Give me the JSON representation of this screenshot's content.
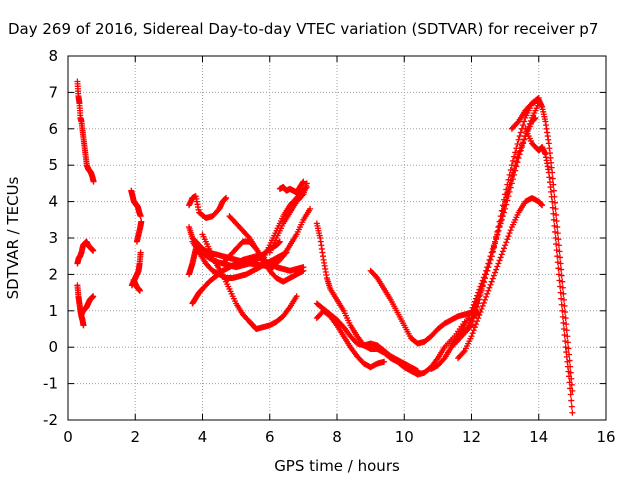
{
  "chart_data": {
    "type": "scatter",
    "title": "Day 269 of 2016, Sidereal Day-to-day VTEC variation (SDTVAR) for receiver p7",
    "xlabel": "GPS time / hours",
    "ylabel": "SDTVAR / TECUs",
    "xlim": [
      0,
      16
    ],
    "ylim": [
      -2,
      8
    ],
    "xticks": [
      "0",
      "2",
      "4",
      "6",
      "8",
      "10",
      "12",
      "14",
      "16"
    ],
    "yticks": [
      "-2",
      "-1",
      "0",
      "1",
      "2",
      "3",
      "4",
      "5",
      "6",
      "7",
      "8"
    ],
    "grid": true,
    "marker": "+",
    "color": "#ff0000",
    "series": [
      {
        "x": [
          0.28,
          0.31,
          0.34,
          0.37,
          0.4,
          0.44,
          0.48,
          0.52,
          0.56,
          0.6,
          0.64,
          0.68,
          0.72,
          0.76
        ],
        "y": [
          7.3,
          6.9,
          6.7,
          6.3,
          6.2,
          5.9,
          5.6,
          5.3,
          5.0,
          4.9,
          4.85,
          4.8,
          4.7,
          4.55
        ]
      },
      {
        "x": [
          0.28,
          0.32,
          0.36,
          0.4,
          0.45,
          0.5,
          0.55,
          0.6,
          0.65,
          0.7,
          0.75
        ],
        "y": [
          2.3,
          2.45,
          2.5,
          2.6,
          2.8,
          2.85,
          2.9,
          2.8,
          2.75,
          2.7,
          2.65
        ]
      },
      {
        "x": [
          0.28,
          0.31,
          0.34,
          0.37,
          0.4,
          0.43,
          0.46
        ],
        "y": [
          1.7,
          1.4,
          1.2,
          1.0,
          0.85,
          0.75,
          0.6
        ]
      },
      {
        "x": [
          0.4,
          0.45,
          0.5,
          0.55,
          0.6,
          0.65,
          0.7,
          0.75
        ],
        "y": [
          0.9,
          1.0,
          1.05,
          1.1,
          1.2,
          1.3,
          1.35,
          1.4
        ]
      },
      {
        "x": [
          1.88,
          1.92,
          1.96,
          2.0,
          2.04,
          2.08,
          2.12,
          2.16
        ],
        "y": [
          4.3,
          4.15,
          4.0,
          3.95,
          3.9,
          3.85,
          3.7,
          3.6
        ]
      },
      {
        "x": [
          1.9,
          1.95,
          2.0,
          2.05,
          2.1,
          2.13,
          2.16
        ],
        "y": [
          1.7,
          1.8,
          1.9,
          2.0,
          2.1,
          2.3,
          2.6
        ]
      },
      {
        "x": [
          1.95,
          2.0,
          2.05,
          2.1,
          2.14
        ],
        "y": [
          1.85,
          1.75,
          1.65,
          1.6,
          1.55
        ]
      },
      {
        "x": [
          2.05,
          2.1,
          2.15,
          2.18
        ],
        "y": [
          2.9,
          3.1,
          3.3,
          3.45
        ]
      },
      {
        "x": [
          3.6,
          3.7,
          3.8,
          3.9,
          4.1,
          4.3,
          4.5,
          4.6,
          4.7
        ],
        "y": [
          3.9,
          4.1,
          4.15,
          3.7,
          3.55,
          3.6,
          3.8,
          4.0,
          4.1
        ]
      },
      {
        "x": [
          3.6,
          3.65,
          3.7,
          3.75,
          3.8
        ],
        "y": [
          2.0,
          2.15,
          2.3,
          2.5,
          2.7
        ]
      },
      {
        "x": [
          3.6,
          3.7,
          3.8,
          3.9,
          4.0,
          4.2,
          4.4,
          4.6,
          4.8,
          5.0,
          5.2,
          5.4,
          5.6,
          5.8,
          6.0,
          6.1
        ],
        "y": [
          3.3,
          3.0,
          2.9,
          2.8,
          2.7,
          2.6,
          2.55,
          2.5,
          2.45,
          2.4,
          2.35,
          2.3,
          2.28,
          2.25,
          2.2,
          2.2
        ]
      },
      {
        "x": [
          3.7,
          3.8,
          3.9,
          4.0,
          4.2,
          4.4,
          4.6,
          4.8,
          5.0,
          5.2,
          5.4,
          5.6,
          5.8,
          6.0,
          6.2,
          6.4,
          6.6,
          6.8,
          7.0
        ],
        "y": [
          1.2,
          1.35,
          1.5,
          1.6,
          1.8,
          1.95,
          2.1,
          2.2,
          2.3,
          2.4,
          2.45,
          2.5,
          2.4,
          2.3,
          2.2,
          2.15,
          2.1,
          2.15,
          2.2
        ]
      },
      {
        "x": [
          3.7,
          3.9,
          4.1,
          4.3,
          4.5,
          4.7,
          4.9,
          5.1,
          5.3,
          5.5,
          5.7,
          5.9,
          6.1,
          6.3,
          6.5
        ],
        "y": [
          2.9,
          2.6,
          2.3,
          2.1,
          2.0,
          1.9,
          1.9,
          1.95,
          2.0,
          2.1,
          2.2,
          2.3,
          2.4,
          2.5,
          2.6
        ]
      },
      {
        "x": [
          3.8,
          4.0,
          4.2,
          4.4,
          4.6,
          4.8,
          5.0,
          5.2,
          5.4,
          5.6,
          5.8,
          6.0,
          6.2,
          6.3
        ],
        "y": [
          2.8,
          2.6,
          2.45,
          2.35,
          2.3,
          2.25,
          2.2,
          2.25,
          2.3,
          2.4,
          2.55,
          2.7,
          2.8,
          2.9
        ]
      },
      {
        "x": [
          4.0,
          4.2,
          4.4,
          4.6,
          4.8,
          5.0,
          5.2,
          5.4,
          5.5,
          5.6,
          5.8,
          6.0,
          6.2,
          6.4,
          6.6,
          6.8
        ],
        "y": [
          3.1,
          2.7,
          2.3,
          2.0,
          1.6,
          1.2,
          0.9,
          0.7,
          0.6,
          0.5,
          0.55,
          0.6,
          0.7,
          0.85,
          1.1,
          1.4
        ]
      },
      {
        "x": [
          4.6,
          4.8,
          5.0,
          5.2,
          5.4,
          5.6,
          5.8,
          6.0,
          6.2,
          6.4,
          6.6,
          6.8,
          7.0,
          7.2
        ],
        "y": [
          2.3,
          2.5,
          2.7,
          2.9,
          2.9,
          2.7,
          2.4,
          2.2,
          2.3,
          2.5,
          2.8,
          3.1,
          3.5,
          3.8
        ]
      },
      {
        "x": [
          4.8,
          5.0,
          5.2,
          5.4,
          5.6,
          5.8,
          6.0,
          6.2,
          6.4,
          6.6,
          6.8,
          7.0
        ],
        "y": [
          3.6,
          3.4,
          3.2,
          3.0,
          2.7,
          2.4,
          2.1,
          1.9,
          1.8,
          1.9,
          2.0,
          2.1
        ]
      },
      {
        "x": [
          5.8,
          6.0,
          6.2,
          6.4,
          6.6,
          6.8,
          7.0,
          7.1
        ],
        "y": [
          2.4,
          2.8,
          3.2,
          3.6,
          3.9,
          4.1,
          4.3,
          4.4
        ]
      },
      {
        "x": [
          6.0,
          6.2,
          6.4,
          6.6,
          6.8,
          7.0,
          7.1
        ],
        "y": [
          2.6,
          3.0,
          3.4,
          3.7,
          4.0,
          4.2,
          4.5
        ]
      },
      {
        "x": [
          6.3,
          6.4,
          6.5,
          6.6,
          6.7,
          6.8,
          6.9,
          7.0
        ],
        "y": [
          4.35,
          4.4,
          4.3,
          4.35,
          4.3,
          4.25,
          4.4,
          4.55
        ]
      },
      {
        "x": [
          7.4,
          7.5,
          7.6,
          7.7,
          7.8,
          8.0,
          8.2,
          8.4,
          8.6,
          8.8,
          9.0,
          9.2,
          9.4,
          9.6,
          9.8,
          10.0,
          10.2,
          10.4,
          10.6,
          10.8,
          11.0,
          11.2,
          11.5,
          11.8,
          12.2
        ],
        "y": [
          3.4,
          3.0,
          2.4,
          1.9,
          1.6,
          1.3,
          1.0,
          0.6,
          0.3,
          0.05,
          -0.05,
          -0.05,
          -0.15,
          -0.3,
          -0.4,
          -0.55,
          -0.65,
          -0.75,
          -0.7,
          -0.55,
          -0.3,
          0.0,
          0.3,
          0.7,
          0.9
        ]
      },
      {
        "x": [
          7.4,
          7.6,
          7.8,
          8.0,
          8.2,
          8.4,
          8.6,
          8.8,
          9.0,
          9.2,
          9.4,
          9.6,
          9.8,
          10.0,
          10.2,
          10.4
        ],
        "y": [
          1.2,
          1.05,
          0.9,
          0.75,
          0.55,
          0.3,
          0.1,
          0.05,
          0.1,
          0.05,
          -0.1,
          -0.25,
          -0.35,
          -0.45,
          -0.55,
          -0.65
        ]
      },
      {
        "x": [
          7.4,
          7.6,
          7.8,
          8.0,
          8.2,
          8.4,
          8.6,
          8.8,
          9.0,
          9.2,
          9.4
        ],
        "y": [
          0.8,
          1.0,
          0.85,
          0.6,
          0.3,
          0.0,
          -0.25,
          -0.45,
          -0.55,
          -0.45,
          -0.4
        ]
      },
      {
        "x": [
          9.0,
          9.2,
          9.4,
          9.6,
          9.8,
          10.0,
          10.2,
          10.4,
          10.6,
          10.8,
          11.0,
          11.2,
          11.4,
          11.6,
          11.8,
          12.0,
          12.2
        ],
        "y": [
          2.1,
          1.9,
          1.6,
          1.3,
          0.95,
          0.6,
          0.25,
          0.1,
          0.15,
          0.3,
          0.5,
          0.65,
          0.75,
          0.85,
          0.9,
          0.95,
          0.95
        ]
      },
      {
        "x": [
          10.8,
          11.0,
          11.2,
          11.4,
          11.6,
          11.8,
          12.0,
          12.2,
          12.4,
          12.6,
          12.8,
          13.0,
          13.2,
          13.4,
          13.6,
          13.8,
          14.0
        ],
        "y": [
          -0.6,
          -0.5,
          -0.3,
          0.0,
          0.2,
          0.4,
          0.6,
          1.2,
          1.9,
          2.5,
          3.3,
          4.2,
          5.0,
          5.7,
          6.3,
          6.7,
          6.85
        ]
      },
      {
        "x": [
          11.5,
          11.8,
          12.0,
          12.2,
          12.4,
          12.6,
          12.8,
          13.0,
          13.2,
          13.4,
          13.6,
          13.8,
          13.9
        ],
        "y": [
          0.1,
          0.4,
          0.8,
          1.3,
          1.9,
          2.5,
          3.2,
          4.0,
          4.7,
          5.3,
          5.8,
          6.2,
          6.3
        ]
      },
      {
        "x": [
          11.6,
          11.8,
          12.0,
          12.2,
          12.4,
          12.6,
          12.8,
          13.0,
          13.2,
          13.4,
          13.6,
          13.8,
          14.0,
          14.1
        ],
        "y": [
          -0.3,
          -0.1,
          0.3,
          0.8,
          1.3,
          1.8,
          2.3,
          2.8,
          3.3,
          3.7,
          4.0,
          4.1,
          4.0,
          3.9
        ]
      },
      {
        "x": [
          11.4,
          11.6,
          11.8,
          12.0,
          12.2,
          12.4,
          12.6,
          12.8,
          13.0,
          13.2,
          13.4,
          13.6,
          13.8,
          14.0
        ],
        "y": [
          0.0,
          0.3,
          0.6,
          1.0,
          1.5,
          2.0,
          2.6,
          3.2,
          3.8,
          4.5,
          5.2,
          5.8,
          6.3,
          6.7
        ]
      },
      {
        "x": [
          13.2,
          13.4,
          13.6,
          13.8,
          14.0,
          14.1,
          14.2,
          14.3,
          14.4,
          14.5,
          14.6,
          14.7,
          14.8,
          14.9,
          15.0
        ],
        "y": [
          6.0,
          6.2,
          6.5,
          6.7,
          6.8,
          6.6,
          6.2,
          5.6,
          4.8,
          3.8,
          2.8,
          1.8,
          0.8,
          -0.2,
          -1.2
        ]
      },
      {
        "x": [
          13.6,
          13.8,
          14.0,
          14.1,
          14.2,
          14.3,
          14.4,
          14.5,
          14.6,
          14.7,
          14.8,
          14.9,
          15.0
        ],
        "y": [
          6.0,
          5.6,
          5.4,
          5.5,
          5.3,
          4.8,
          4.0,
          3.0,
          2.0,
          1.0,
          0.0,
          -0.8,
          -1.8
        ]
      }
    ]
  }
}
